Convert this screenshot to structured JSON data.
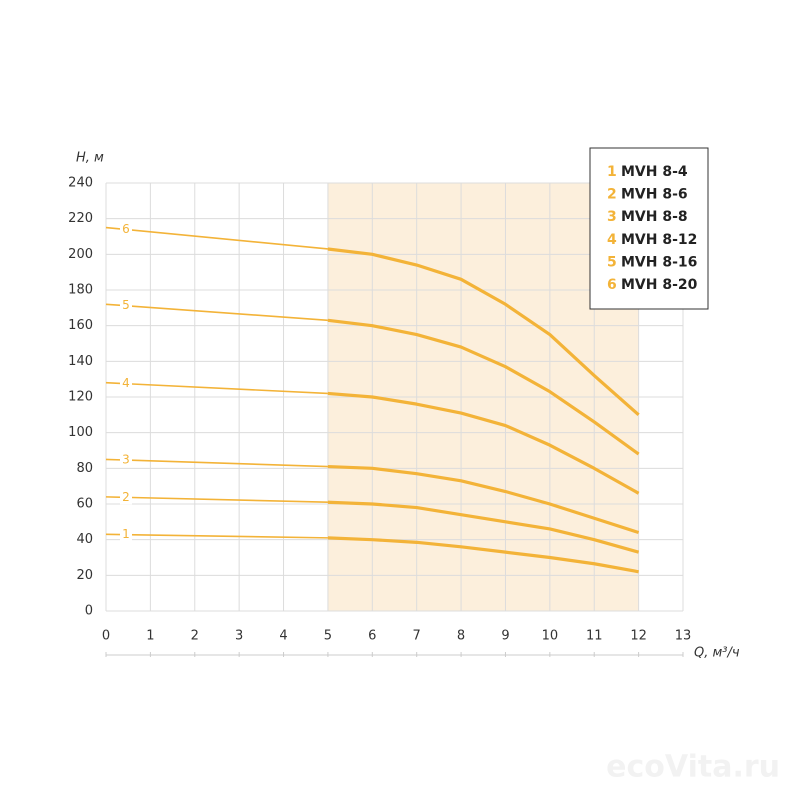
{
  "chart_data": {
    "type": "line",
    "y_label": "H, м",
    "x_label": "Q, м³/ч",
    "watermark": "ecoVita.ru",
    "x": [
      0,
      5,
      6,
      7,
      8,
      9,
      10,
      11,
      12
    ],
    "xlim": [
      0,
      13
    ],
    "xticks": [
      0,
      1,
      2,
      3,
      4,
      5,
      6,
      7,
      8,
      9,
      10,
      11,
      12,
      13
    ],
    "ylim": [
      0,
      240
    ],
    "yticks": [
      0,
      20,
      40,
      60,
      80,
      100,
      120,
      140,
      160,
      180,
      200,
      220,
      240
    ],
    "grid": true,
    "shaded_xrange": [
      5,
      12
    ],
    "shade_color": "#fcefdc",
    "series": [
      {
        "name": "MVH 8-4",
        "label": "1",
        "color": "#f3b338",
        "values": [
          43,
          41,
          40,
          38.5,
          36,
          33,
          30,
          26.5,
          22
        ]
      },
      {
        "name": "MVH 8-6",
        "label": "2",
        "color": "#f3b338",
        "values": [
          64,
          61,
          60,
          58,
          54,
          50,
          46,
          40,
          33
        ]
      },
      {
        "name": "MVH 8-8",
        "label": "3",
        "color": "#f3b338",
        "values": [
          85,
          81,
          80,
          77,
          73,
          67,
          60,
          52,
          44
        ]
      },
      {
        "name": "MVH 8-12",
        "label": "4",
        "color": "#f3b338",
        "values": [
          128,
          122,
          120,
          116,
          111,
          104,
          93,
          80,
          66
        ]
      },
      {
        "name": "MVH 8-16",
        "label": "5",
        "color": "#f3b338",
        "values": [
          172,
          163,
          160,
          155,
          148,
          137,
          123,
          106,
          88
        ]
      },
      {
        "name": "MVH 8-20",
        "label": "6",
        "color": "#f3b338",
        "values": [
          215,
          203,
          200,
          194,
          186,
          172,
          155,
          132,
          110
        ]
      }
    ]
  }
}
